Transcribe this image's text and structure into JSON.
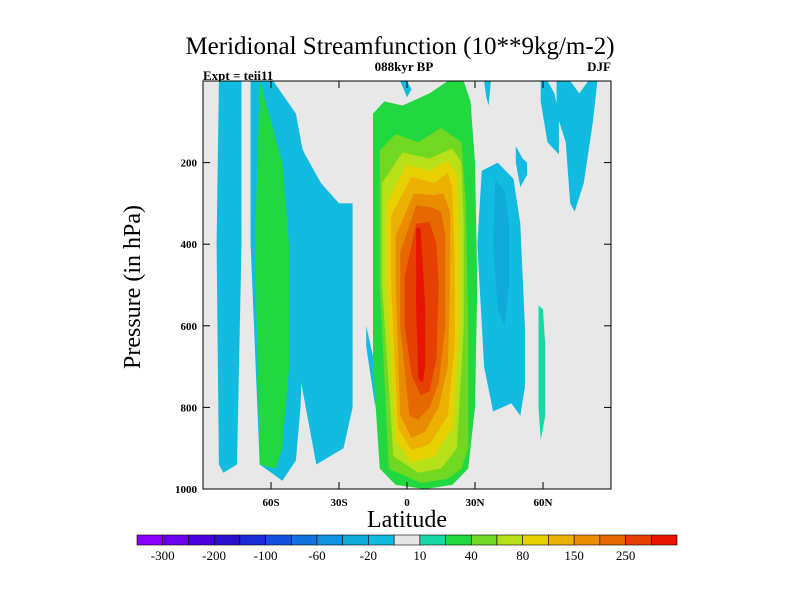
{
  "chart_data": {
    "type": "heatmap",
    "title": "Meridional Streamfunction (10**9kg/m-2)",
    "subtitle_left": "Expt = teii11",
    "subtitle_center": "088kyr BP",
    "subtitle_right": "DJF",
    "xlabel": "Latitude",
    "ylabel": "Pressure (in hPa)",
    "x_ticks": [
      {
        "value": -60,
        "label": "60S"
      },
      {
        "value": -30,
        "label": "30S"
      },
      {
        "value": 0,
        "label": "0"
      },
      {
        "value": 30,
        "label": "30N"
      },
      {
        "value": 60,
        "label": "60N"
      }
    ],
    "y_ticks": [
      {
        "value": 200,
        "label": "200"
      },
      {
        "value": 400,
        "label": "400"
      },
      {
        "value": 600,
        "label": "600"
      },
      {
        "value": 800,
        "label": "800"
      },
      {
        "value": 1000,
        "label": "1000"
      }
    ],
    "xlim": [
      -90,
      90
    ],
    "ylim": [
      0,
      1000
    ],
    "y_inverted": true,
    "background_color": "#e8e8e8",
    "colorbar": {
      "colors": [
        "#8a00ff",
        "#6a00ee",
        "#4a00dd",
        "#2a10cc",
        "#1a2bd8",
        "#1550dd",
        "#0f72e0",
        "#0e92e0",
        "#0faad8",
        "#12bce0",
        "#e6e6e6",
        "#18d8a8",
        "#22d840",
        "#70d820",
        "#b8e018",
        "#e8d000",
        "#ecb000",
        "#ea8c00",
        "#e86800",
        "#e64000",
        "#e61400"
      ],
      "labels": [
        "-300",
        "-200",
        "-100",
        "-60",
        "-20",
        "10",
        "40",
        "80",
        "150",
        "250"
      ],
      "label_positions": [
        1,
        3,
        5,
        7,
        9,
        11,
        13,
        15,
        17,
        19
      ]
    },
    "contour_fields": [
      {
        "color": "#12bce0",
        "lat": [
          -81,
          -78,
          -73,
          -73,
          -75,
          -81,
          -83,
          -84,
          -83
        ],
        "p": [
          0,
          0,
          0,
          400,
          940,
          960,
          940,
          400,
          0
        ]
      },
      {
        "color": "#12bce0",
        "lat": [
          -69,
          -59,
          -49,
          -45,
          -45,
          -47,
          -49,
          -55,
          -65,
          -69
        ],
        "p": [
          0,
          0,
          80,
          200,
          500,
          800,
          930,
          980,
          940,
          400
        ]
      },
      {
        "color": "#22d840",
        "lat": [
          -65,
          -60,
          -55,
          -52,
          -52,
          -55,
          -58,
          -65,
          -67
        ],
        "p": [
          0,
          100,
          200,
          400,
          700,
          900,
          950,
          940,
          400
        ]
      },
      {
        "color": "#12bce0",
        "lat": [
          -50,
          -45,
          -38,
          -30,
          -24,
          -24,
          -28,
          -40,
          -48,
          -50
        ],
        "p": [
          120,
          180,
          250,
          300,
          300,
          800,
          900,
          940,
          700,
          200
        ]
      },
      {
        "color": "#12bce0",
        "lat": [
          -18,
          -18,
          -14,
          -14,
          -18
        ],
        "p": [
          400,
          600,
          700,
          800,
          650
        ]
      },
      {
        "color": "#22d840",
        "lat": [
          -15,
          -10,
          -2,
          10,
          18,
          25,
          28,
          30,
          31,
          30,
          27,
          20,
          8,
          -5,
          -12,
          -15
        ],
        "p": [
          80,
          50,
          60,
          30,
          0,
          0,
          50,
          200,
          500,
          800,
          950,
          990,
          1000,
          990,
          950,
          700
        ]
      },
      {
        "color": "#70d820",
        "lat": [
          -12,
          -5,
          5,
          15,
          24,
          26,
          27,
          27,
          24,
          18,
          6,
          -8,
          -12
        ],
        "p": [
          170,
          130,
          150,
          115,
          150,
          300,
          600,
          900,
          950,
          975,
          985,
          950,
          500
        ]
      },
      {
        "color": "#b8e018",
        "lat": [
          -11,
          -2,
          10,
          20,
          24,
          25,
          25,
          22,
          15,
          5,
          -6,
          -11
        ],
        "p": [
          250,
          175,
          190,
          165,
          200,
          350,
          600,
          900,
          950,
          960,
          920,
          500
        ]
      },
      {
        "color": "#e8d000",
        "lat": [
          -9,
          0,
          10,
          18,
          22,
          23,
          23,
          20,
          12,
          2,
          -5,
          -9
        ],
        "p": [
          300,
          205,
          220,
          195,
          230,
          400,
          600,
          850,
          920,
          935,
          880,
          500
        ]
      },
      {
        "color": "#ecb000",
        "lat": [
          -7,
          2,
          12,
          18,
          20,
          21,
          21,
          18,
          10,
          2,
          -4,
          -7
        ],
        "p": [
          330,
          235,
          250,
          225,
          260,
          450,
          650,
          820,
          890,
          905,
          850,
          500
        ]
      },
      {
        "color": "#ea8c00",
        "lat": [
          -5,
          3,
          12,
          16,
          19,
          19,
          18,
          14,
          8,
          2,
          -3,
          -5
        ],
        "p": [
          380,
          275,
          280,
          275,
          320,
          500,
          700,
          800,
          860,
          875,
          820,
          500
        ]
      },
      {
        "color": "#e86800",
        "lat": [
          -3,
          4,
          11,
          15,
          17,
          17,
          14,
          10,
          5,
          1,
          -3
        ],
        "p": [
          420,
          305,
          310,
          320,
          380,
          600,
          740,
          800,
          830,
          820,
          600
        ]
      },
      {
        "color": "#e64000",
        "lat": [
          -1,
          4,
          10,
          13,
          14,
          13,
          10,
          6,
          2,
          -1
        ],
        "p": [
          480,
          350,
          345,
          400,
          500,
          680,
          760,
          770,
          720,
          600
        ]
      },
      {
        "color": "#e61400",
        "lat": [
          4,
          6,
          7,
          8,
          8,
          7,
          5,
          4
        ],
        "p": [
          360,
          360,
          450,
          550,
          700,
          740,
          730,
          550
        ]
      },
      {
        "color": "#12bce0",
        "lat": [
          33,
          40,
          47,
          50,
          52,
          52,
          50,
          46,
          38,
          34,
          31
        ],
        "p": [
          220,
          200,
          240,
          350,
          600,
          750,
          820,
          790,
          810,
          700,
          400
        ]
      },
      {
        "color": "#0faad8",
        "lat": [
          39,
          43,
          45,
          45,
          43,
          40,
          38
        ],
        "p": [
          240,
          270,
          350,
          500,
          600,
          560,
          400
        ]
      },
      {
        "color": "#12bce0",
        "lat": [
          48,
          51,
          53,
          53,
          50,
          48
        ],
        "p": [
          160,
          190,
          200,
          230,
          260,
          200
        ]
      },
      {
        "color": "#18d8a8",
        "lat": [
          58,
          60,
          61,
          61,
          59,
          58,
          58
        ],
        "p": [
          550,
          560,
          650,
          820,
          880,
          800,
          650
        ]
      },
      {
        "color": "#12bce0",
        "lat": [
          59,
          62,
          65,
          67,
          67,
          62,
          59
        ],
        "p": [
          0,
          0,
          30,
          80,
          180,
          150,
          50
        ]
      },
      {
        "color": "#12bce0",
        "lat": [
          66,
          72,
          76,
          80,
          84,
          82,
          78,
          74,
          72,
          70,
          66
        ],
        "p": [
          0,
          0,
          30,
          0,
          0,
          100,
          250,
          320,
          300,
          150,
          80
        ]
      },
      {
        "color": "#12bce0",
        "lat": [
          34,
          37,
          36,
          35
        ],
        "p": [
          0,
          0,
          60,
          40
        ]
      },
      {
        "color": "#12bce0",
        "lat": [
          -3,
          0,
          2,
          0
        ],
        "p": [
          0,
          0,
          20,
          40
        ]
      }
    ]
  }
}
